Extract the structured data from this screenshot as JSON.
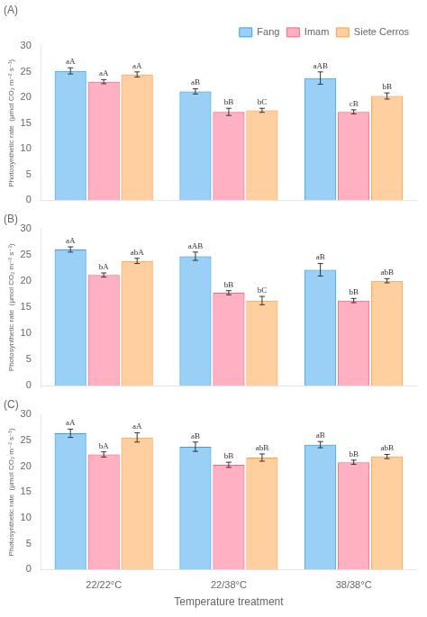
{
  "chart_data": [
    {
      "type": "bar",
      "title": "(A)",
      "categories": [
        "22/22°C",
        "22/38°C",
        "38/38°C"
      ],
      "series": [
        {
          "name": "Fang",
          "values": [
            25.2,
            21.2,
            23.8
          ],
          "errors": [
            0.6,
            0.5,
            1.2
          ],
          "annotations": [
            "aA",
            "aB",
            "aAB"
          ]
        },
        {
          "name": "Imam",
          "values": [
            23.1,
            17.2,
            17.2
          ],
          "errors": [
            0.4,
            0.7,
            0.4
          ],
          "annotations": [
            "aA",
            "bB",
            "cB"
          ]
        },
        {
          "name": "Siete Cerros",
          "values": [
            24.5,
            17.5,
            20.3
          ],
          "errors": [
            0.5,
            0.4,
            0.6
          ],
          "annotations": [
            "aA",
            "bC",
            "bB"
          ]
        }
      ],
      "ylabel": "Photosynthetic rate  (μmol CO₂ m⁻² s⁻¹)",
      "ylim": [
        0,
        30
      ],
      "yticks": [
        0,
        5,
        10,
        15,
        20,
        25,
        30
      ],
      "grid": false,
      "legend": "upper right",
      "tick_labels": "y"
    },
    {
      "type": "bar",
      "title": "(B)",
      "categories": [
        "22/22°C",
        "22/38°C",
        "38/38°C"
      ],
      "series": [
        {
          "name": "Fang",
          "values": [
            26.1,
            24.8,
            22.2
          ],
          "errors": [
            0.5,
            0.8,
            1.2
          ],
          "annotations": [
            "aA",
            "aAB",
            "aB"
          ]
        },
        {
          "name": "Imam",
          "values": [
            21.2,
            17.8,
            16.3
          ],
          "errors": [
            0.4,
            0.4,
            0.4
          ],
          "annotations": [
            "bA",
            "bB",
            "bB"
          ]
        },
        {
          "name": "Siete Cerros",
          "values": [
            23.9,
            16.3,
            20.1
          ],
          "errors": [
            0.5,
            0.8,
            0.4
          ],
          "annotations": [
            "abA",
            "bC",
            "abB"
          ]
        }
      ],
      "ylabel": "Photosynthetic rate  (μmol CO₂ m⁻² s⁻¹)",
      "ylim": [
        0,
        30
      ],
      "yticks": [
        0,
        5,
        10,
        15,
        20,
        25,
        30
      ],
      "grid": false,
      "tick_labels": "y"
    },
    {
      "type": "bar",
      "title": "(C)",
      "categories": [
        "22/22°C",
        "22/38°C",
        "38/38°C"
      ],
      "series": [
        {
          "name": "Fang",
          "values": [
            26.4,
            23.8,
            24.2
          ],
          "errors": [
            0.8,
            0.9,
            0.6
          ],
          "annotations": [
            "aA",
            "aB",
            "aB"
          ]
        },
        {
          "name": "Imam",
          "values": [
            22.3,
            20.3,
            20.8
          ],
          "errors": [
            0.5,
            0.5,
            0.4
          ],
          "annotations": [
            "bA",
            "bB",
            "bB"
          ]
        },
        {
          "name": "Siete Cerros",
          "values": [
            25.6,
            21.7,
            21.9
          ],
          "errors": [
            0.9,
            0.7,
            0.4
          ],
          "annotations": [
            "aA",
            "abB",
            "abB"
          ]
        }
      ],
      "xlabel": "Temperature treatment",
      "ylabel": "Photosynthetic rate  (μmol CO₂ m⁻² s⁻¹)",
      "ylim": [
        0,
        30
      ],
      "yticks": [
        0,
        5,
        10,
        15,
        20,
        25,
        30
      ],
      "grid": false
    }
  ]
}
